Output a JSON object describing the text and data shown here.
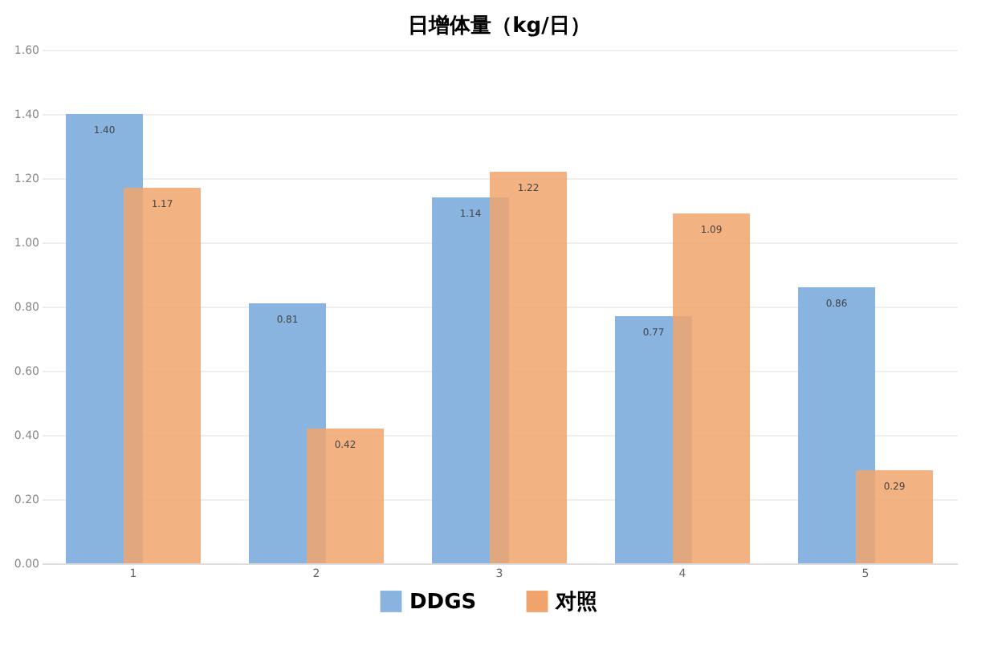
{
  "chart_data": {
    "type": "bar",
    "title": "日增体量（kg/日）",
    "categories": [
      "1",
      "2",
      "3",
      "4",
      "5"
    ],
    "series": [
      {
        "name": "DDGS",
        "color": "#8ab4e0",
        "values": [
          1.4,
          0.81,
          1.14,
          0.77,
          0.86
        ],
        "value_labels": [
          "1.40",
          "0.81",
          "1.14",
          "0.77",
          "0.86"
        ]
      },
      {
        "name": "对照",
        "color": "#f0a46c",
        "values": [
          1.17,
          0.42,
          1.22,
          1.09,
          0.29
        ],
        "value_labels": [
          "1.17",
          "0.42",
          "1.22",
          "1.09",
          "0.29"
        ]
      }
    ],
    "ylim": [
      0,
      1.6
    ],
    "yticks": [
      {
        "value": 0,
        "label": "0.00"
      },
      {
        "value": 0.2,
        "label": "0.20"
      },
      {
        "value": 0.4,
        "label": "0.40"
      },
      {
        "value": 0.6,
        "label": "0.60"
      },
      {
        "value": 0.8,
        "label": "0.80"
      },
      {
        "value": 1.0,
        "label": "1.00"
      },
      {
        "value": 1.2,
        "label": "1.20"
      },
      {
        "value": 1.4,
        "label": "1.40"
      },
      {
        "value": 1.6,
        "label": "1.60"
      }
    ],
    "grid": "y",
    "legend": "bottom"
  }
}
